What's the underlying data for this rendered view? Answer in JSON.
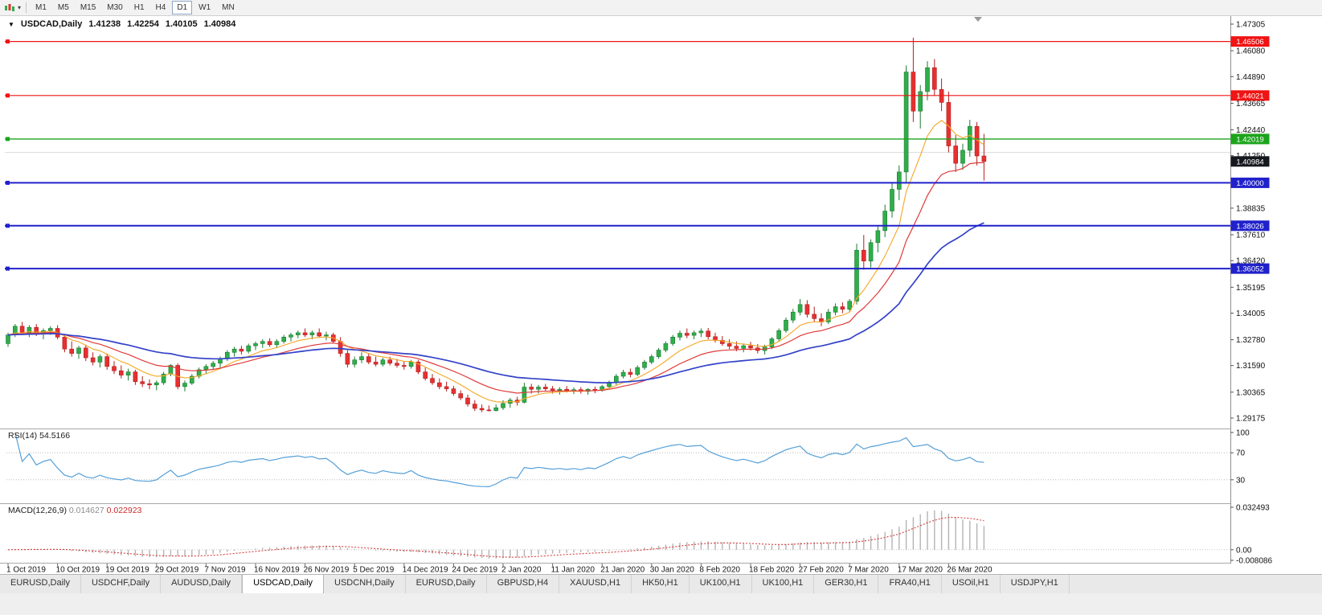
{
  "toolbar": {
    "timeframes": [
      {
        "label": "M1",
        "active": false
      },
      {
        "label": "M5",
        "active": false
      },
      {
        "label": "M15",
        "active": false
      },
      {
        "label": "M30",
        "active": false
      },
      {
        "label": "H1",
        "active": false
      },
      {
        "label": "H4",
        "active": false
      },
      {
        "label": "D1",
        "active": true
      },
      {
        "label": "W1",
        "active": false
      },
      {
        "label": "MN",
        "active": false
      }
    ]
  },
  "chart": {
    "symbol_label": "USDCAD,Daily",
    "ohlc": {
      "open": "1.41238",
      "high": "1.42254",
      "low": "1.40105",
      "close": "1.40984"
    },
    "bid_badge": {
      "text": "1.40984",
      "color": "#15191d"
    },
    "levels": [
      {
        "text": "1.46506",
        "price": 1.46506,
        "color": "#f01414",
        "line_width": 1.2
      },
      {
        "text": "1.44021",
        "price": 1.44021,
        "color": "#f01414",
        "line_width": 1.2
      },
      {
        "text": "1.42019",
        "price": 1.42019,
        "color": "#1ca41c",
        "line_width": 1.4
      },
      {
        "text": "1.40000",
        "price": 1.4,
        "color": "#2121cc",
        "line_width": 2
      },
      {
        "text": "1.38026",
        "price": 1.38026,
        "color": "#2121cc",
        "line_width": 2
      },
      {
        "text": "1.36052",
        "price": 1.36052,
        "color": "#2121cc",
        "line_width": 2
      }
    ],
    "faint_line": {
      "price": 1.414,
      "color": "#dcdcdc"
    },
    "price_axis_ticks": [
      "1.47305",
      "1.46080",
      "1.44890",
      "1.43665",
      "1.42440",
      "1.41250",
      "1.40025",
      "1.38835",
      "1.37610",
      "1.36420",
      "1.35195",
      "1.34005",
      "1.32780",
      "1.31590",
      "1.30365",
      "1.29175"
    ],
    "date_labels": [
      "1 Oct 2019",
      "10 Oct 2019",
      "19 Oct 2019",
      "29 Oct 2019",
      "7 Nov 2019",
      "16 Nov 2019",
      "26 Nov 2019",
      "5 Dec 2019",
      "14 Dec 2019",
      "24 Dec 2019",
      "2 Jan 2020",
      "11 Jan 2020",
      "21 Jan 2020",
      "30 Jan 2020",
      "8 Feb 2020",
      "18 Feb 2020",
      "27 Feb 2020",
      "7 Mar 2020",
      "17 Mar 2020",
      "26 Mar 2020"
    ]
  },
  "rsi": {
    "label": "RSI(14)",
    "value": "54.5166",
    "ticks": [
      "100",
      "70",
      "30"
    ],
    "level_lines": [
      70,
      30
    ],
    "color": "#55a0d8"
  },
  "macd": {
    "label": "MACD(12,26,9)",
    "values": [
      "0.014627",
      "0.022923"
    ],
    "ticks": [
      "0.032493",
      "0.00",
      "-0.008086"
    ],
    "histogram_color": "#b4b4b4",
    "signal_color": "#d23c3c"
  },
  "tabs": [
    {
      "label": "EURUSD,Daily",
      "active": false
    },
    {
      "label": "USDCHF,Daily",
      "active": false
    },
    {
      "label": "AUDUSD,Daily",
      "active": false
    },
    {
      "label": "USDCAD,Daily",
      "active": true
    },
    {
      "label": "USDCNH,Daily",
      "active": false
    },
    {
      "label": "EURUSD,Daily",
      "active": false
    },
    {
      "label": "GBPUSD,H4",
      "active": false
    },
    {
      "label": "XAUUSD,H1",
      "active": false
    },
    {
      "label": "HK50,H1",
      "active": false
    },
    {
      "label": "UK100,H1",
      "active": false
    },
    {
      "label": "UK100,H1",
      "active": false
    },
    {
      "label": "GER30,H1",
      "active": false
    },
    {
      "label": "FRA40,H1",
      "active": false
    },
    {
      "label": "USOil,H1",
      "active": false
    },
    {
      "label": "USDJPY,H1",
      "active": false
    }
  ],
  "colors": {
    "candle_up": "#2fae4a",
    "candle_up_border": "#1c7a33",
    "candle_down": "#e73030",
    "candle_down_border": "#b21d1d",
    "ma_fast": "#f5a623",
    "ma_mid": "#e03a3a",
    "ma_slow": "#3342c8"
  },
  "chart_data": {
    "type": "candlestick",
    "symbol": "USDCAD",
    "timeframe": "Daily",
    "price_range_visible": [
      1.29175,
      1.47305
    ],
    "moving_averages": [
      {
        "type": "ema",
        "period": 8
      },
      {
        "type": "ema",
        "period": 17
      },
      {
        "type": "ema",
        "period": 40
      }
    ],
    "indicators": [
      {
        "name": "RSI",
        "period": 14,
        "current": 54.5166
      },
      {
        "name": "MACD",
        "fast": 12,
        "slow": 26,
        "signal": 9,
        "current": [
          0.014627,
          0.022923
        ]
      }
    ],
    "horizontal_levels": [
      1.46506,
      1.44021,
      1.42019,
      1.4,
      1.38026,
      1.36052
    ],
    "candles": [
      [
        1.326,
        1.331,
        1.3245,
        1.33
      ],
      [
        1.33,
        1.335,
        1.329,
        1.334
      ],
      [
        1.334,
        1.336,
        1.33,
        1.331
      ],
      [
        1.331,
        1.3345,
        1.329,
        1.3335
      ],
      [
        1.3335,
        1.335,
        1.3295,
        1.3305
      ],
      [
        1.3305,
        1.333,
        1.328,
        1.332
      ],
      [
        1.332,
        1.334,
        1.33,
        1.333
      ],
      [
        1.333,
        1.3345,
        1.328,
        1.329
      ],
      [
        1.329,
        1.33,
        1.322,
        1.3235
      ],
      [
        1.3235,
        1.327,
        1.32,
        1.3215
      ],
      [
        1.3215,
        1.325,
        1.319,
        1.324
      ],
      [
        1.324,
        1.3255,
        1.318,
        1.3195
      ],
      [
        1.3195,
        1.322,
        1.316,
        1.3175
      ],
      [
        1.3175,
        1.321,
        1.315,
        1.32
      ],
      [
        1.32,
        1.3215,
        1.314,
        1.3155
      ],
      [
        1.3155,
        1.318,
        1.312,
        1.3135
      ],
      [
        1.3135,
        1.316,
        1.31,
        1.3115
      ],
      [
        1.3115,
        1.3145,
        1.309,
        1.313
      ],
      [
        1.313,
        1.314,
        1.307,
        1.3085
      ],
      [
        1.3085,
        1.311,
        1.306,
        1.3075
      ],
      [
        1.3075,
        1.3095,
        1.305,
        1.307
      ],
      [
        1.307,
        1.309,
        1.3045,
        1.308
      ],
      [
        1.308,
        1.313,
        1.307,
        1.312
      ],
      [
        1.312,
        1.3165,
        1.311,
        1.316
      ],
      [
        1.316,
        1.317,
        1.305,
        1.3062
      ],
      [
        1.3062,
        1.309,
        1.304,
        1.3078
      ],
      [
        1.3078,
        1.312,
        1.307,
        1.311
      ],
      [
        1.311,
        1.315,
        1.31,
        1.314
      ],
      [
        1.314,
        1.3165,
        1.312,
        1.3155
      ],
      [
        1.3155,
        1.318,
        1.314,
        1.317
      ],
      [
        1.317,
        1.32,
        1.315,
        1.319
      ],
      [
        1.319,
        1.323,
        1.318,
        1.322
      ],
      [
        1.322,
        1.3245,
        1.32,
        1.3235
      ],
      [
        1.3235,
        1.325,
        1.321,
        1.3225
      ],
      [
        1.3225,
        1.326,
        1.3215,
        1.325
      ],
      [
        1.325,
        1.327,
        1.323,
        1.326
      ],
      [
        1.326,
        1.328,
        1.324,
        1.327
      ],
      [
        1.327,
        1.3285,
        1.3245,
        1.3255
      ],
      [
        1.3255,
        1.328,
        1.324,
        1.327
      ],
      [
        1.327,
        1.33,
        1.326,
        1.329
      ],
      [
        1.329,
        1.331,
        1.327,
        1.33
      ],
      [
        1.33,
        1.332,
        1.3285,
        1.331
      ],
      [
        1.331,
        1.333,
        1.329,
        1.33
      ],
      [
        1.33,
        1.332,
        1.328,
        1.331
      ],
      [
        1.331,
        1.333,
        1.329,
        1.3295
      ],
      [
        1.3295,
        1.3315,
        1.3275,
        1.33
      ],
      [
        1.33,
        1.331,
        1.326,
        1.327
      ],
      [
        1.327,
        1.329,
        1.32,
        1.3215
      ],
      [
        1.3215,
        1.323,
        1.315,
        1.3165
      ],
      [
        1.3165,
        1.32,
        1.315,
        1.3185
      ],
      [
        1.3185,
        1.322,
        1.317,
        1.32
      ],
      [
        1.32,
        1.3215,
        1.3165,
        1.3175
      ],
      [
        1.3175,
        1.32,
        1.3155,
        1.3165
      ],
      [
        1.3165,
        1.3195,
        1.3155,
        1.3185
      ],
      [
        1.3185,
        1.32,
        1.316,
        1.317
      ],
      [
        1.317,
        1.319,
        1.315,
        1.316
      ],
      [
        1.316,
        1.318,
        1.314,
        1.3155
      ],
      [
        1.3155,
        1.3185,
        1.3145,
        1.3175
      ],
      [
        1.3175,
        1.3185,
        1.312,
        1.313
      ],
      [
        1.313,
        1.315,
        1.309,
        1.31
      ],
      [
        1.31,
        1.312,
        1.307,
        1.308
      ],
      [
        1.308,
        1.31,
        1.305,
        1.3062
      ],
      [
        1.3062,
        1.3085,
        1.304,
        1.3052
      ],
      [
        1.3052,
        1.3065,
        1.302,
        1.303
      ],
      [
        1.303,
        1.3045,
        1.3,
        1.301
      ],
      [
        1.301,
        1.3025,
        1.297,
        1.2982
      ],
      [
        1.2982,
        1.3,
        1.295,
        1.2962
      ],
      [
        1.2962,
        1.298,
        1.2945,
        1.2955
      ],
      [
        1.2955,
        1.2975,
        1.2948,
        1.2952
      ],
      [
        1.2952,
        1.298,
        1.2948,
        1.2965
      ],
      [
        1.2965,
        1.3,
        1.2955,
        1.2985
      ],
      [
        1.2985,
        1.301,
        1.2965,
        1.3
      ],
      [
        1.3,
        1.3015,
        1.2975,
        1.299
      ],
      [
        1.299,
        1.308,
        1.2985,
        1.306
      ],
      [
        1.306,
        1.3075,
        1.303,
        1.305
      ],
      [
        1.305,
        1.307,
        1.303,
        1.306
      ],
      [
        1.306,
        1.3075,
        1.304,
        1.3052
      ],
      [
        1.3052,
        1.3065,
        1.303,
        1.3045
      ],
      [
        1.3045,
        1.306,
        1.3025,
        1.305
      ],
      [
        1.305,
        1.3065,
        1.3035,
        1.3042
      ],
      [
        1.3042,
        1.3058,
        1.3028,
        1.3048
      ],
      [
        1.3048,
        1.306,
        1.303,
        1.304
      ],
      [
        1.304,
        1.3055,
        1.3025,
        1.305
      ],
      [
        1.305,
        1.3062,
        1.3032,
        1.3045
      ],
      [
        1.3045,
        1.307,
        1.3038,
        1.3062
      ],
      [
        1.3062,
        1.309,
        1.3052,
        1.3082
      ],
      [
        1.3082,
        1.312,
        1.307,
        1.311
      ],
      [
        1.311,
        1.314,
        1.31,
        1.3128
      ],
      [
        1.3128,
        1.3145,
        1.3105,
        1.3118
      ],
      [
        1.3118,
        1.316,
        1.311,
        1.315
      ],
      [
        1.315,
        1.3185,
        1.314,
        1.3175
      ],
      [
        1.3175,
        1.321,
        1.3165,
        1.32
      ],
      [
        1.32,
        1.324,
        1.319,
        1.323
      ],
      [
        1.323,
        1.327,
        1.322,
        1.326
      ],
      [
        1.326,
        1.33,
        1.325,
        1.329
      ],
      [
        1.329,
        1.332,
        1.3275,
        1.3308
      ],
      [
        1.3308,
        1.333,
        1.3285,
        1.3298
      ],
      [
        1.3298,
        1.332,
        1.328,
        1.331
      ],
      [
        1.331,
        1.333,
        1.329,
        1.3318
      ],
      [
        1.3318,
        1.3332,
        1.328,
        1.3292
      ],
      [
        1.3292,
        1.331,
        1.3265,
        1.3275
      ],
      [
        1.3275,
        1.3295,
        1.325,
        1.326
      ],
      [
        1.326,
        1.328,
        1.3235,
        1.3248
      ],
      [
        1.3248,
        1.327,
        1.3225,
        1.3238
      ],
      [
        1.3238,
        1.326,
        1.322,
        1.325
      ],
      [
        1.325,
        1.3268,
        1.3228,
        1.324
      ],
      [
        1.324,
        1.3258,
        1.3215,
        1.3228
      ],
      [
        1.3228,
        1.3255,
        1.321,
        1.3245
      ],
      [
        1.3245,
        1.329,
        1.3235,
        1.3282
      ],
      [
        1.3282,
        1.333,
        1.327,
        1.332
      ],
      [
        1.332,
        1.338,
        1.331,
        1.3368
      ],
      [
        1.3368,
        1.342,
        1.3355,
        1.3405
      ],
      [
        1.3405,
        1.3465,
        1.339,
        1.344
      ],
      [
        1.344,
        1.346,
        1.338,
        1.3395
      ],
      [
        1.3395,
        1.343,
        1.336,
        1.3375
      ],
      [
        1.3375,
        1.34,
        1.334,
        1.336
      ],
      [
        1.336,
        1.342,
        1.335,
        1.3405
      ],
      [
        1.3405,
        1.3445,
        1.339,
        1.343
      ],
      [
        1.343,
        1.345,
        1.34,
        1.3418
      ],
      [
        1.3418,
        1.3465,
        1.3405,
        1.3455
      ],
      [
        1.3455,
        1.372,
        1.344,
        1.369
      ],
      [
        1.369,
        1.376,
        1.36,
        1.364
      ],
      [
        1.364,
        1.374,
        1.361,
        1.3725
      ],
      [
        1.3725,
        1.38,
        1.368,
        1.378
      ],
      [
        1.378,
        1.39,
        1.375,
        1.387
      ],
      [
        1.387,
        1.4,
        1.384,
        1.397
      ],
      [
        1.397,
        1.408,
        1.392,
        1.405
      ],
      [
        1.405,
        1.454,
        1.4,
        1.451
      ],
      [
        1.451,
        1.4668,
        1.428,
        1.433
      ],
      [
        1.433,
        1.445,
        1.425,
        1.442
      ],
      [
        1.442,
        1.456,
        1.438,
        1.453
      ],
      [
        1.453,
        1.457,
        1.44,
        1.443
      ],
      [
        1.443,
        1.448,
        1.433,
        1.437
      ],
      [
        1.437,
        1.442,
        1.414,
        1.417
      ],
      [
        1.417,
        1.422,
        1.405,
        1.409
      ],
      [
        1.409,
        1.418,
        1.406,
        1.415
      ],
      [
        1.415,
        1.429,
        1.412,
        1.426
      ],
      [
        1.426,
        1.428,
        1.408,
        1.4124
      ],
      [
        1.41238,
        1.42254,
        1.40105,
        1.40984
      ]
    ]
  }
}
